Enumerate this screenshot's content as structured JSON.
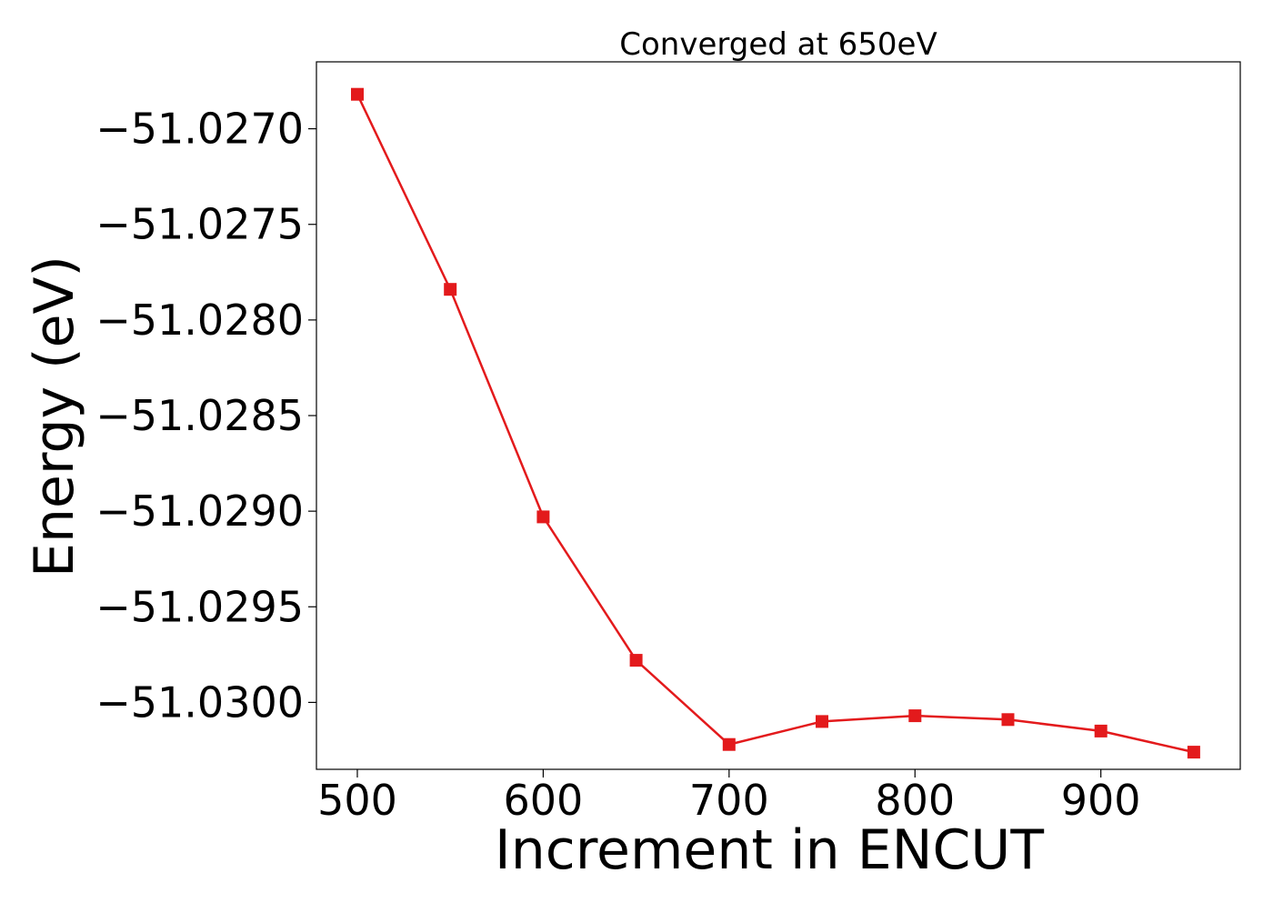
{
  "chart_data": {
    "type": "line",
    "title": "Converged at 650eV",
    "xlabel": "Increment in ENCUT",
    "ylabel": "Energy (eV)",
    "x": [
      500,
      550,
      600,
      650,
      700,
      750,
      800,
      850,
      900,
      950
    ],
    "series": [
      {
        "values": [
          -51.02682,
          -51.02784,
          -51.02903,
          -51.02978,
          -51.03022,
          -51.0301,
          -51.03007,
          -51.03009,
          -51.03015,
          -51.03026
        ],
        "color": "#e31a1c",
        "marker": "square"
      }
    ],
    "xlim": [
      478,
      975
    ],
    "ylim": [
      -51.03035,
      -51.02665
    ],
    "xticks": [
      500,
      600,
      700,
      800,
      900
    ],
    "xtick_labels": [
      "500",
      "600",
      "700",
      "800",
      "900"
    ],
    "yticks": [
      -51.027,
      -51.0275,
      -51.028,
      -51.0285,
      -51.029,
      -51.0295,
      -51.03
    ],
    "ytick_labels": [
      "−51.0270",
      "−51.0275",
      "−51.0280",
      "−51.0285",
      "−51.0290",
      "−51.0295",
      "−51.0300"
    ],
    "grid": false,
    "legend": "none"
  }
}
